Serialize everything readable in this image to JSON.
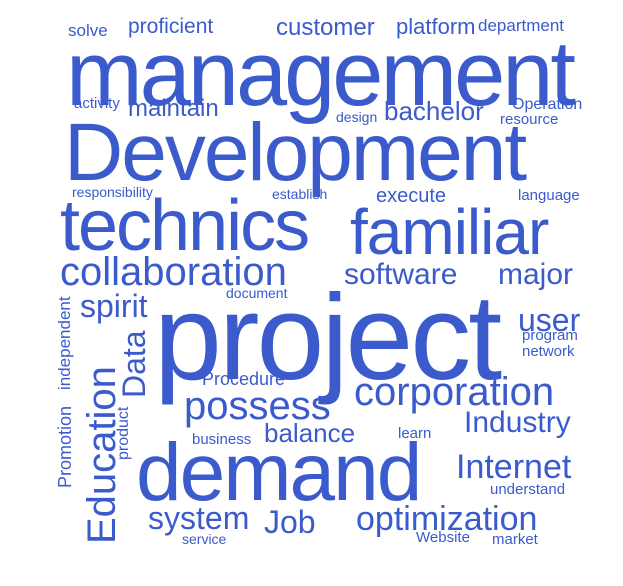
{
  "cloud": {
    "color": "#3b5bcc",
    "words": {
      "management": "management",
      "Development": "Development",
      "technics": "technics",
      "familiar": "familiar",
      "collaboration": "collaboration",
      "software": "software",
      "major": "major",
      "project": "project",
      "demand": "demand",
      "corporation": "corporation",
      "possess": "possess",
      "Industry": "Industry",
      "Internet": "Internet",
      "system": "system",
      "Job": "Job",
      "optimization": "optimization",
      "balance": "balance",
      "spirit": "spirit",
      "user": "user",
      "Education": "Education",
      "Data": "Data",
      "Promotion": "Promotion",
      "independent": "independent",
      "product": "product",
      "solve": "solve",
      "proficient": "proficient",
      "customer": "customer",
      "platform": "platform",
      "department": "department",
      "activity": "activity",
      "maintain": "maintain",
      "design": "design",
      "bachelor": "bachelor",
      "Operation": "Operation",
      "resource": "resource",
      "responsibility": "responsibility",
      "establish": "establish",
      "execute": "execute",
      "language": "language",
      "document": "document",
      "program": "program",
      "network": "network",
      "Procedure": "Procedure",
      "business": "business",
      "learn": "learn",
      "understand": "understand",
      "service": "service",
      "Website": "Website",
      "market": "market"
    }
  }
}
